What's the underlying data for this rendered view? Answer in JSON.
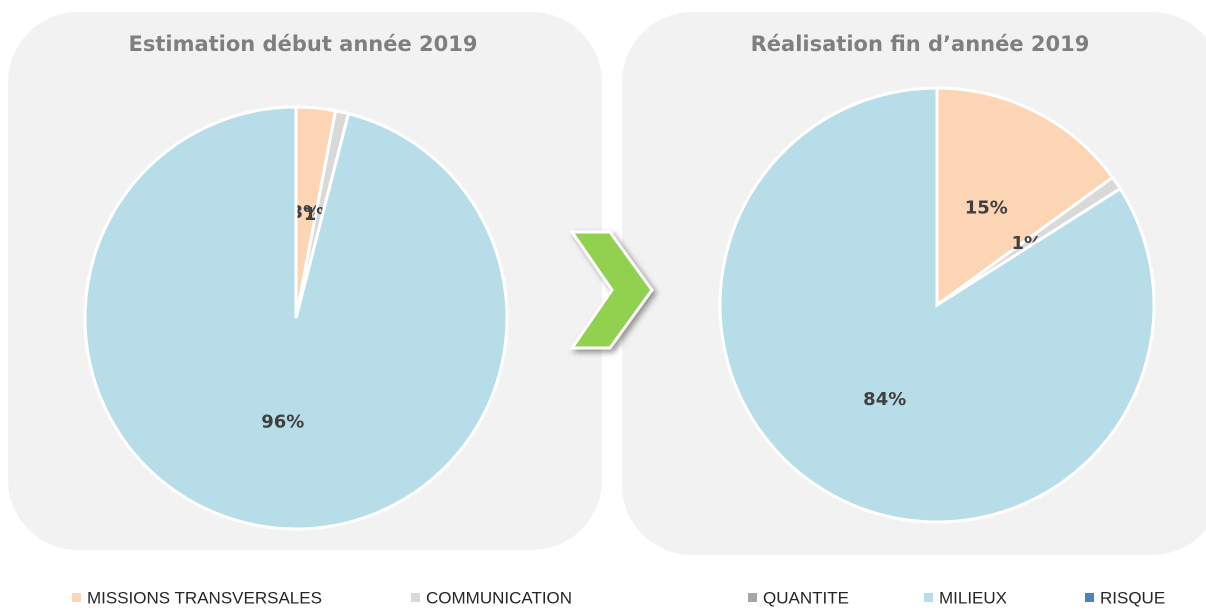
{
  "categories": [
    "MISSIONS TRANSVERSALES",
    "COMMUNICATION",
    "QUANTITE",
    "MILIEUX",
    "RISQUE"
  ],
  "colors": [
    "#fcd5b5",
    "#d9d9d9",
    "#a6a6a6",
    "#b7dde8",
    "#4f81bd"
  ],
  "chart_data": [
    {
      "type": "pie",
      "title": "Estimation début année 2019",
      "values": [
        3,
        1,
        0,
        96,
        0
      ],
      "value_labels": [
        "3%",
        "1%",
        null,
        "96%",
        null
      ]
    },
    {
      "type": "pie",
      "title": "Réalisation fin d’année 2019",
      "values": [
        15,
        1,
        0,
        84,
        0
      ],
      "value_labels": [
        "15%",
        "1%",
        null,
        "84%",
        null
      ]
    }
  ]
}
